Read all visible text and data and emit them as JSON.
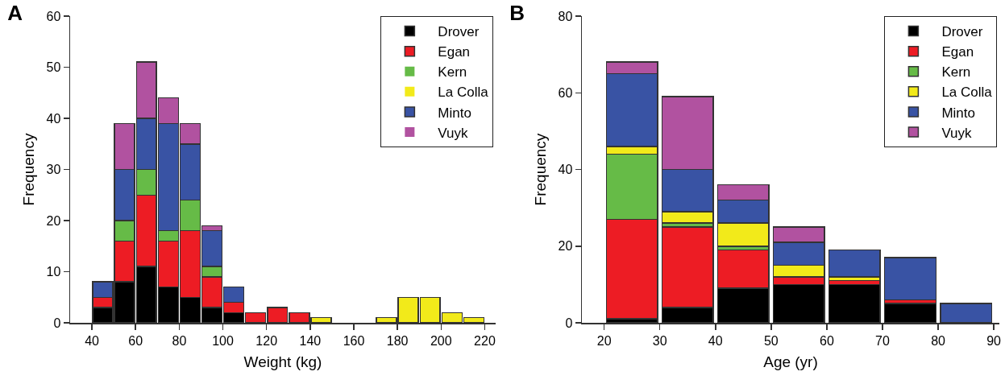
{
  "chart_data": [
    {
      "type": "bar",
      "title": "A",
      "xlabel": "Weight (kg)",
      "ylabel": "Frequency",
      "stacked": true,
      "legend": "top right",
      "grid": false,
      "x": [
        45,
        55,
        65,
        75,
        85,
        95,
        105,
        115,
        125,
        135,
        145,
        155,
        165,
        175,
        185,
        195,
        205,
        215
      ],
      "xlim": [
        30,
        225
      ],
      "xticks": [
        40,
        60,
        80,
        100,
        120,
        140,
        160,
        180,
        200,
        220
      ],
      "ylim": [
        0,
        60
      ],
      "yticks": [
        0,
        10,
        20,
        30,
        40,
        50,
        60
      ],
      "series": [
        {
          "name": "Drover",
          "color": "#000000",
          "values": [
            3,
            8,
            11,
            7,
            5,
            3,
            2,
            0,
            0,
            0,
            0,
            0,
            0,
            0,
            0,
            0,
            0,
            0
          ]
        },
        {
          "name": "Egan",
          "color": "#ed1c24",
          "values": [
            2,
            8,
            14,
            9,
            13,
            6,
            2,
            2,
            3,
            2,
            0,
            0,
            0,
            0,
            0,
            0,
            0,
            0
          ]
        },
        {
          "name": "Kern",
          "color": "#66bb47",
          "values": [
            0,
            4,
            5,
            2,
            6,
            2,
            0,
            0,
            0,
            0,
            0,
            0,
            0,
            0,
            0,
            0,
            0,
            0
          ]
        },
        {
          "name": "La Colla",
          "color": "#f2ea1a",
          "values": [
            0,
            0,
            0,
            0,
            0,
            0,
            0,
            0,
            0,
            0,
            1,
            0,
            0,
            1,
            5,
            5,
            2,
            1
          ]
        },
        {
          "name": "Minto",
          "color": "#3953a4",
          "values": [
            3,
            10,
            10,
            21,
            11,
            7,
            3,
            0,
            0,
            0,
            0,
            0,
            0,
            0,
            0,
            0,
            0,
            0
          ]
        },
        {
          "name": "Vuyk",
          "color": "#b152a0",
          "values": [
            0,
            9,
            11,
            5,
            4,
            1,
            0,
            0,
            0,
            0,
            0,
            0,
            0,
            0,
            0,
            0,
            0,
            0
          ]
        }
      ]
    },
    {
      "type": "bar",
      "title": "B",
      "xlabel": "Age (yr)",
      "ylabel": "Frequency",
      "stacked": true,
      "legend": "top right",
      "grid": false,
      "x": [
        25,
        35,
        45,
        55,
        65,
        75,
        85
      ],
      "xlim": [
        16,
        91
      ],
      "xticks": [
        20,
        30,
        40,
        50,
        60,
        70,
        80,
        90
      ],
      "ylim": [
        0,
        80
      ],
      "yticks": [
        0,
        20,
        40,
        60,
        80
      ],
      "series": [
        {
          "name": "Drover",
          "color": "#000000",
          "values": [
            1,
            4,
            9,
            10,
            10,
            5,
            0
          ]
        },
        {
          "name": "Egan",
          "color": "#ed1c24",
          "values": [
            26,
            21,
            10,
            2,
            1,
            1,
            0
          ]
        },
        {
          "name": "Kern",
          "color": "#66bb47",
          "values": [
            17,
            1,
            1,
            0,
            0,
            0,
            0
          ]
        },
        {
          "name": "La Colla",
          "color": "#f2ea1a",
          "values": [
            2,
            3,
            6,
            3,
            1,
            0,
            0
          ]
        },
        {
          "name": "Minto",
          "color": "#3953a4",
          "values": [
            19,
            11,
            6,
            6,
            7,
            11,
            5
          ]
        },
        {
          "name": "Vuyk",
          "color": "#b152a0",
          "values": [
            3,
            19,
            4,
            4,
            0,
            0,
            0
          ]
        }
      ]
    }
  ]
}
